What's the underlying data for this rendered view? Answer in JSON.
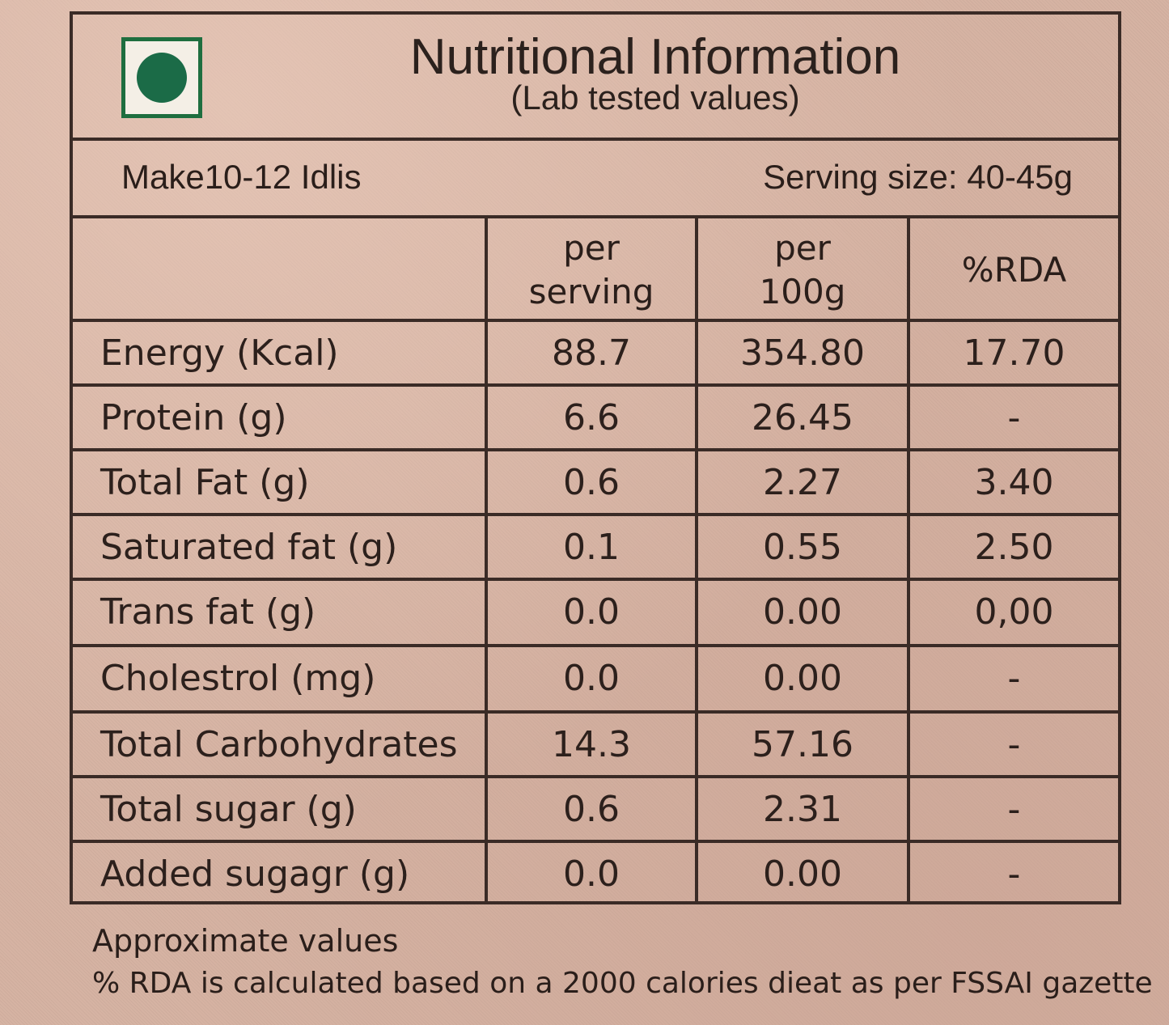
{
  "header": {
    "title": "Nutritional Information",
    "subtitle": "(Lab tested values)",
    "veg_mark_color": "#1b6b47"
  },
  "info": {
    "makes": "Make10-12 Idlis",
    "serving_size": "Serving size: 40-45g"
  },
  "columns": [
    "per\nserving",
    "per\n100g",
    "%RDA"
  ],
  "rows": [
    {
      "nutrient": "Energy (Kcal)",
      "per_serving": "88.7",
      "per_100g": "354.80",
      "rda": "17.70"
    },
    {
      "nutrient": "Protein (g)",
      "per_serving": "6.6",
      "per_100g": "26.45",
      "rda": "-"
    },
    {
      "nutrient": "Total Fat (g)",
      "per_serving": "0.6",
      "per_100g": "2.27",
      "rda": "3.40"
    },
    {
      "nutrient": "Saturated fat (g)",
      "per_serving": "0.1",
      "per_100g": "0.55",
      "rda": "2.50"
    },
    {
      "nutrient": "Trans fat (g)",
      "per_serving": "0.0",
      "per_100g": "0.00",
      "rda": "0,00"
    },
    {
      "nutrient": "Cholestrol (mg)",
      "per_serving": "0.0",
      "per_100g": "0.00",
      "rda": "-"
    },
    {
      "nutrient": "Total Carbohydrates",
      "per_serving": "14.3",
      "per_100g": "57.16",
      "rda": "-"
    },
    {
      "nutrient": "Total sugar (g)",
      "per_serving": "0.6",
      "per_100g": "2.31",
      "rda": "-"
    },
    {
      "nutrient": "Added sugagr (g)",
      "per_serving": "0.0",
      "per_100g": "0.00",
      "rda": "-"
    }
  ],
  "footnotes": {
    "approx": "Approximate values",
    "rda_note": "% RDA is calculated based on a 2000 calories dieat as per FSSAI gazette"
  }
}
